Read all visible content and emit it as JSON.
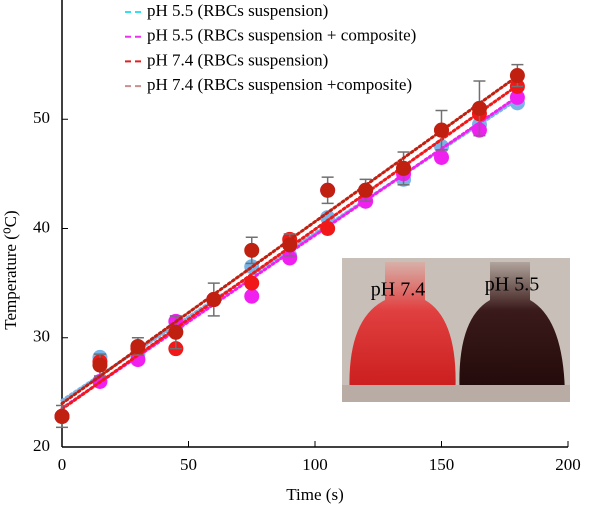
{
  "chart_data": {
    "type": "scatter",
    "x_label": "Time (s)",
    "y_label": "Temperature (⁰C)",
    "x": [
      0,
      15,
      30,
      45,
      60,
      75,
      90,
      105,
      120,
      135,
      150,
      165,
      180
    ],
    "xlim": [
      0,
      200
    ],
    "xticks": [
      0,
      50,
      100,
      150,
      200
    ],
    "ylim": [
      20,
      60
    ],
    "yticks": [
      20,
      30,
      40,
      50
    ],
    "trendline": true,
    "series": [
      {
        "name": "pH 5.5 (RBCs suspension)",
        "color": "#33e0f0",
        "marker_color": "#79b4e8",
        "values": [
          22.8,
          28.2,
          28.5,
          31.0,
          33.5,
          36.5,
          37.5,
          41.0,
          42.5,
          44.5,
          47.5,
          49.5,
          51.5
        ]
      },
      {
        "name": "pH 5.5 (RBCs suspension + composite)",
        "color": "#f030f0",
        "marker_color": "#f020f0",
        "values": [
          22.8,
          26.0,
          28.0,
          31.5,
          33.5,
          33.8,
          37.3,
          43.5,
          42.5,
          45.0,
          46.5,
          49.0,
          52.0
        ]
      },
      {
        "name": "pH 7.4 (RBCs suspension)",
        "color": "#e02020",
        "marker_color": "#f01818",
        "values": [
          22.8,
          27.8,
          29.0,
          29.0,
          33.5,
          35.0,
          39.0,
          40.0,
          43.5,
          45.5,
          49.0,
          50.5,
          53.0
        ]
      },
      {
        "name": "pH 7.4 (RBCs suspension +composite)",
        "color": "#c89090",
        "marker_color": "#c02010",
        "values": [
          22.8,
          27.5,
          29.2,
          30.5,
          33.5,
          38.0,
          38.5,
          43.5,
          43.5,
          45.5,
          49.0,
          51.0,
          54.0
        ],
        "errors": [
          1.0,
          1.0,
          0.8,
          1.5,
          1.5,
          1.2,
          1.0,
          1.2,
          1.0,
          1.5,
          1.8,
          2.5,
          1.0
        ]
      }
    ],
    "inset_labels": [
      "pH 7.4",
      "pH 5.5"
    ]
  }
}
